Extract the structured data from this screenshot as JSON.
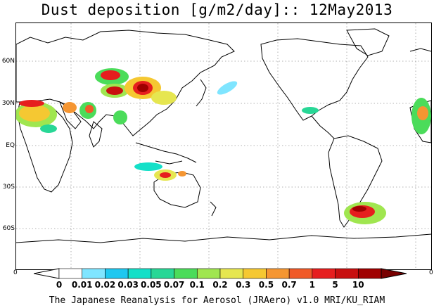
{
  "title": "Dust deposition [g/m2/day]:: 12May2013",
  "lat_labels": [
    "60N",
    "30N",
    "EQ",
    "30S",
    "60S"
  ],
  "corner_left": "0",
  "corner_right": "0",
  "colorbar": {
    "ticks": [
      "0",
      "0.01",
      "0.02",
      "0.03",
      "0.05",
      "0.07",
      "0.1",
      "0.2",
      "0.3",
      "0.5",
      "0.7",
      "1",
      "5",
      "10"
    ],
    "colors": [
      "#ffffff",
      "#ffffff",
      "#7fe5ff",
      "#1ec8f0",
      "#14e0c8",
      "#28d796",
      "#4bdc5a",
      "#a0e650",
      "#e6e650",
      "#f5c832",
      "#f59632",
      "#f05a28",
      "#e61e1e",
      "#c80f0f",
      "#a00000",
      "#780000"
    ]
  },
  "credit": "The Japanese Reanalysis for Aerosol (JRAero) v1.0 MRI/KU_RIAM"
}
